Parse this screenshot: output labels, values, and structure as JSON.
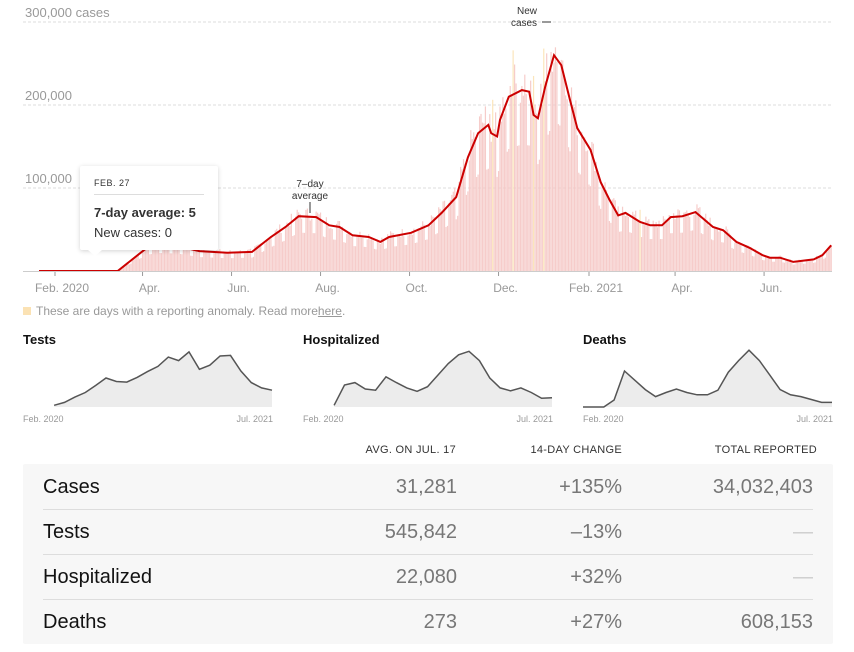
{
  "chart_data": {
    "type": "bar+line",
    "y_axis": {
      "ticks": [
        {
          "value": 100000,
          "label": "100,000"
        },
        {
          "value": 200000,
          "label": "200,000"
        },
        {
          "value": 300000,
          "label": "300,000 cases"
        }
      ],
      "ylim": [
        0,
        300000
      ]
    },
    "x_axis": {
      "ticks": [
        {
          "date": "2020-02-01",
          "label": "Feb. 2020"
        },
        {
          "date": "2020-04-01",
          "label": "Apr."
        },
        {
          "date": "2020-06-01",
          "label": "Jun."
        },
        {
          "date": "2020-08-01",
          "label": "Aug."
        },
        {
          "date": "2020-10-01",
          "label": "Oct."
        },
        {
          "date": "2020-12-01",
          "label": "Dec."
        },
        {
          "date": "2021-02-01",
          "label": "Feb. 2021"
        },
        {
          "date": "2021-04-01",
          "label": "Apr."
        },
        {
          "date": "2021-06-01",
          "label": "Jun."
        }
      ],
      "xlim": [
        "2020-01-21",
        "2021-07-17"
      ]
    },
    "grid": true,
    "colors": {
      "average_line": "#cc0000",
      "new_cases_bars": "#f5c7c4",
      "anomaly_bars": "#fbe2b4"
    },
    "annotations": {
      "average": "7–day average",
      "average_lines": [
        "7–day",
        "average"
      ],
      "new_cases_lines": [
        "New",
        "cases"
      ]
    },
    "series": [
      {
        "name": "7-day average",
        "type": "line",
        "points": [
          [
            "2020-01-21",
            0
          ],
          [
            "2020-03-15",
            0
          ],
          [
            "2020-04-04",
            28000
          ],
          [
            "2020-04-12",
            31000
          ],
          [
            "2020-04-25",
            30000
          ],
          [
            "2020-05-10",
            24000
          ],
          [
            "2020-05-29",
            22000
          ],
          [
            "2020-06-15",
            23000
          ],
          [
            "2020-06-28",
            41000
          ],
          [
            "2020-07-08",
            53000
          ],
          [
            "2020-07-17",
            66000
          ],
          [
            "2020-07-29",
            65000
          ],
          [
            "2020-08-07",
            55000
          ],
          [
            "2020-08-14",
            53000
          ],
          [
            "2020-08-23",
            43000
          ],
          [
            "2020-09-03",
            41000
          ],
          [
            "2020-09-11",
            35000
          ],
          [
            "2020-09-17",
            41000
          ],
          [
            "2020-10-02",
            46000
          ],
          [
            "2020-10-14",
            55000
          ],
          [
            "2020-10-23",
            70000
          ],
          [
            "2020-11-02",
            89000
          ],
          [
            "2020-11-10",
            137000
          ],
          [
            "2020-11-17",
            166000
          ],
          [
            "2020-11-24",
            176000
          ],
          [
            "2020-11-26",
            166000
          ],
          [
            "2020-11-30",
            162000
          ],
          [
            "2020-12-02",
            182000
          ],
          [
            "2020-12-08",
            210000
          ],
          [
            "2020-12-17",
            218000
          ],
          [
            "2020-12-22",
            216000
          ],
          [
            "2020-12-25",
            188000
          ],
          [
            "2020-12-28",
            184000
          ],
          [
            "2021-01-02",
            222000
          ],
          [
            "2021-01-08",
            260000
          ],
          [
            "2021-01-13",
            248000
          ],
          [
            "2021-01-19",
            206000
          ],
          [
            "2021-01-24",
            172000
          ],
          [
            "2021-02-02",
            146000
          ],
          [
            "2021-02-09",
            107000
          ],
          [
            "2021-02-15",
            86000
          ],
          [
            "2021-02-21",
            67000
          ],
          [
            "2021-02-26",
            70000
          ],
          [
            "2021-03-08",
            59000
          ],
          [
            "2021-03-15",
            55000
          ],
          [
            "2021-03-23",
            55000
          ],
          [
            "2021-03-29",
            65000
          ],
          [
            "2021-04-06",
            66000
          ],
          [
            "2021-04-15",
            71000
          ],
          [
            "2021-04-27",
            53000
          ],
          [
            "2021-05-04",
            49000
          ],
          [
            "2021-05-13",
            35000
          ],
          [
            "2021-05-22",
            28000
          ],
          [
            "2021-05-31",
            19000
          ],
          [
            "2021-06-05",
            16000
          ],
          [
            "2021-06-12",
            16000
          ],
          [
            "2021-06-21",
            11000
          ],
          [
            "2021-07-05",
            14000
          ],
          [
            "2021-07-11",
            19000
          ],
          [
            "2021-07-17",
            31000
          ]
        ]
      },
      {
        "name": "New cases",
        "type": "bar",
        "note": "daily bars scatter around the 7-day average"
      }
    ],
    "anomaly_dates": [
      "2020-11-27",
      "2020-12-11",
      "2020-12-25",
      "2021-01-01",
      "2021-03-08"
    ]
  },
  "tooltip": {
    "date": "FEB. 27",
    "average": "7-day average: 5",
    "new_cases": "New cases: 0"
  },
  "footnote": {
    "text": "These are days with a reporting anomaly. Read more ",
    "link": "here",
    "end": "."
  },
  "small_multiples": [
    {
      "title": "Tests",
      "start_label": "Feb. 2020",
      "end_label": "Jul. 2021",
      "relative_values": [
        null,
        null,
        null,
        0.03,
        0.08,
        0.17,
        0.25,
        0.37,
        0.5,
        0.44,
        0.43,
        0.51,
        0.61,
        0.7,
        0.86,
        0.8,
        0.95,
        0.65,
        0.72,
        0.88,
        0.89,
        0.62,
        0.42,
        0.33,
        0.29
      ]
    },
    {
      "title": "Hospitalized",
      "start_label": "Feb. 2020",
      "end_label": "Jul. 2021",
      "relative_values": [
        null,
        null,
        null,
        0.03,
        0.38,
        0.42,
        0.31,
        0.29,
        0.52,
        0.42,
        0.33,
        0.27,
        0.35,
        0.55,
        0.75,
        0.9,
        0.96,
        0.8,
        0.5,
        0.33,
        0.28,
        0.33,
        0.25,
        0.15,
        0.16
      ]
    },
    {
      "title": "Deaths",
      "start_label": "Feb. 2020",
      "end_label": "Jul. 2021",
      "relative_values": [
        0,
        0,
        0,
        0.12,
        0.62,
        0.46,
        0.3,
        0.18,
        0.25,
        0.31,
        0.25,
        0.21,
        0.21,
        0.29,
        0.6,
        0.8,
        0.98,
        0.8,
        0.55,
        0.3,
        0.21,
        0.18,
        0.13,
        0.08,
        0.08
      ]
    }
  ],
  "table": {
    "headers": [
      "AVG. ON JUL. 17",
      "14-DAY CHANGE",
      "TOTAL REPORTED"
    ],
    "rows": [
      {
        "label": "Cases",
        "avg": "31,281",
        "change": "+135%",
        "total": "34,032,403"
      },
      {
        "label": "Tests",
        "avg": "545,842",
        "change": "–13%",
        "total": "—"
      },
      {
        "label": "Hospitalized",
        "avg": "22,080",
        "change": "+32%",
        "total": "—"
      },
      {
        "label": "Deaths",
        "avg": "273",
        "change": "+27%",
        "total": "608,153"
      }
    ]
  }
}
